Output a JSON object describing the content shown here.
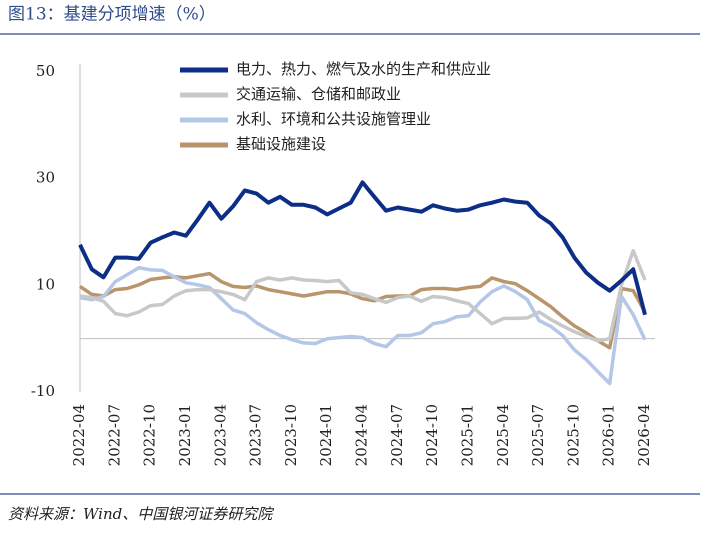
{
  "chart_data": {
    "type": "line",
    "title": "图13：基建分项增速（%）",
    "source": "资料来源：Wind、中国银河证券研究院",
    "categories": [
      "2022-04",
      null,
      null,
      "2022-07",
      null,
      null,
      "2022-10",
      null,
      null,
      "2023-01",
      null,
      null,
      "2023-04",
      null,
      null,
      "2023-07",
      null,
      null,
      "2023-10",
      null,
      null,
      "2024-01",
      null,
      null,
      "2024-04",
      null,
      null,
      "2024-07",
      null,
      null,
      "2024-10",
      null,
      null,
      "2025-01",
      null,
      null,
      "2025-04",
      null,
      null,
      "2025-07",
      null,
      null,
      "2025-10",
      null,
      null,
      "2026-01",
      null,
      null,
      "2026-04"
    ],
    "ylim": [
      -10,
      50
    ],
    "yticks": [
      -10,
      10,
      30,
      50
    ],
    "legend": "upper center",
    "series": [
      {
        "name": "电力、热力、燃气及水的生产和供应业",
        "color": "#0c2e87",
        "values": [
          17.6,
          13,
          11.5,
          15.2,
          15.2,
          15,
          18,
          19,
          19.9,
          19.3,
          22.3,
          25.5,
          22.5,
          24.8,
          27.8,
          27.2,
          25.5,
          26.6,
          25.1,
          25.1,
          24.6,
          23.3,
          24.4,
          25.5,
          29.3,
          26.6,
          24,
          24.6,
          24.2,
          23.8,
          25,
          24.4,
          24,
          24.2,
          25,
          25.5,
          26.1,
          25.7,
          25.5,
          23.1,
          21.6,
          19,
          15.2,
          12.4,
          10.5,
          9,
          10.9,
          13,
          4.5
        ]
      },
      {
        "name": "交通运输、仓储和邮政业",
        "color": "#c8c8c8",
        "values": [
          8,
          7.7,
          7,
          4.7,
          4.3,
          5,
          6.2,
          6.4,
          8,
          9,
          9.2,
          9.2,
          8.8,
          8.3,
          7.3,
          10.7,
          11.4,
          11,
          11.4,
          11,
          10.9,
          10.7,
          10.9,
          8.6,
          8.3,
          7.5,
          6.8,
          7.7,
          8,
          7,
          7.9,
          7.7,
          7.1,
          6.6,
          4.7,
          2.8,
          3.8,
          3.8,
          3.9,
          5,
          3.6,
          2.4,
          1.3,
          0.4,
          -0.4,
          0,
          10.1,
          16.5,
          11
        ]
      },
      {
        "name": "水利、环境和公共设施管理业",
        "color": "#b4c7e7",
        "values": [
          7.7,
          7.3,
          7.9,
          10.7,
          12,
          13.3,
          12.9,
          12.8,
          11.6,
          10.5,
          10.1,
          9.6,
          7.5,
          5.4,
          4.7,
          3,
          1.7,
          0.6,
          -0.2,
          -0.8,
          -0.9,
          0,
          0.2,
          0.4,
          0.2,
          -0.9,
          -1.5,
          0.6,
          0.6,
          1.1,
          2.8,
          3.2,
          4.1,
          4.3,
          6.9,
          8.8,
          9.9,
          8.8,
          7.3,
          3.4,
          2.3,
          0.6,
          -2.1,
          -3.9,
          -6.2,
          -8.4,
          7.9,
          4.5,
          -0.2
        ]
      },
      {
        "name": "基础设施建设",
        "color": "#b8956a",
        "values": [
          9.8,
          8.3,
          8,
          9.2,
          9.4,
          10.1,
          11.1,
          11.4,
          11.6,
          11.4,
          11.8,
          12.2,
          10.7,
          9.8,
          9.6,
          9.9,
          9.2,
          8.8,
          8.4,
          8,
          8.4,
          8.8,
          8.8,
          8.4,
          7.5,
          7.1,
          7.9,
          8,
          8,
          9.2,
          9.4,
          9.4,
          9.2,
          9.6,
          9.8,
          11.4,
          10.7,
          10.3,
          9,
          7.5,
          6,
          4.1,
          2.4,
          1.1,
          -0.4,
          -1.7,
          9.4,
          9,
          5
        ]
      }
    ]
  }
}
